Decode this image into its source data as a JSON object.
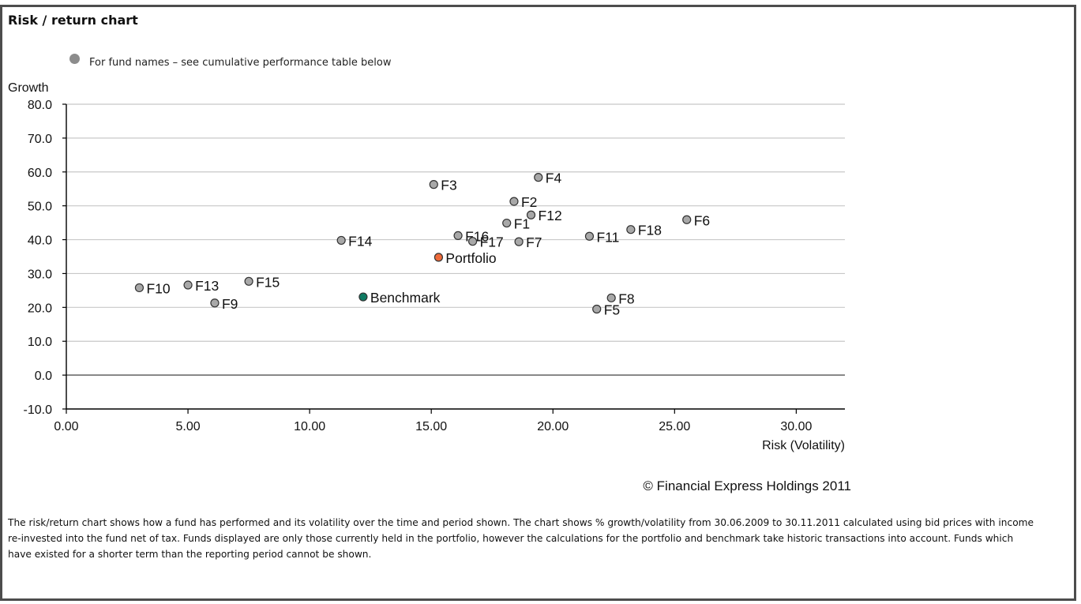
{
  "top_clip": "",
  "title": "Risk / return chart",
  "legend_text": "For fund names – see cumulative performance table below",
  "copyright": "© Financial Express Holdings 2011",
  "footnote": "The risk/return chart shows how a fund has performed and its volatility over the time and period shown. The chart shows % growth/volatility from 30.06.2009 to 30.11.2011 calculated using bid prices with income re-invested into the fund net of tax. Funds displayed are only those currently held in the portfolio, however the calculations for the portfolio and benchmark take historic transactions into account. Funds which have existed for a shorter term than the reporting period cannot be shown.",
  "colors": {
    "fund": "#a8a8a8",
    "portfolio": "#ee6a3a",
    "benchmark": "#0f7a62",
    "grid": "#c8c8c8"
  },
  "chart_data": {
    "type": "scatter",
    "xlabel": "Risk (Volatility)",
    "ylabel": "Growth",
    "xlim": [
      0,
      32
    ],
    "ylim": [
      -10,
      80
    ],
    "x_ticks": [
      "0.00",
      "5.00",
      "10.00",
      "15.00",
      "20.00",
      "25.00",
      "30.00"
    ],
    "y_ticks": [
      "-10.0",
      "0.0",
      "10.0",
      "20.0",
      "30.0",
      "40.0",
      "50.0",
      "60.0",
      "70.0",
      "80.0"
    ],
    "grid": true,
    "points": [
      {
        "label": "F1",
        "x": 18.1,
        "y": 44.9,
        "kind": "fund"
      },
      {
        "label": "F2",
        "x": 18.4,
        "y": 51.3,
        "kind": "fund"
      },
      {
        "label": "F3",
        "x": 15.1,
        "y": 56.3,
        "kind": "fund"
      },
      {
        "label": "F4",
        "x": 19.4,
        "y": 58.4,
        "kind": "fund"
      },
      {
        "label": "F5",
        "x": 21.8,
        "y": 19.5,
        "kind": "fund"
      },
      {
        "label": "F6",
        "x": 25.5,
        "y": 45.9,
        "kind": "fund"
      },
      {
        "label": "F7",
        "x": 18.6,
        "y": 39.4,
        "kind": "fund"
      },
      {
        "label": "F8",
        "x": 22.4,
        "y": 22.8,
        "kind": "fund"
      },
      {
        "label": "F9",
        "x": 6.1,
        "y": 21.3,
        "kind": "fund"
      },
      {
        "label": "F10",
        "x": 3.0,
        "y": 25.8,
        "kind": "fund"
      },
      {
        "label": "F11",
        "x": 21.5,
        "y": 41.0,
        "kind": "fund"
      },
      {
        "label": "F12",
        "x": 19.1,
        "y": 47.3,
        "kind": "fund"
      },
      {
        "label": "F13",
        "x": 5.0,
        "y": 26.6,
        "kind": "fund"
      },
      {
        "label": "F14",
        "x": 11.3,
        "y": 39.8,
        "kind": "fund"
      },
      {
        "label": "F15",
        "x": 7.5,
        "y": 27.7,
        "kind": "fund"
      },
      {
        "label": "F16",
        "x": 16.1,
        "y": 41.2,
        "kind": "fund"
      },
      {
        "label": "F17",
        "x": 16.7,
        "y": 39.5,
        "kind": "fund"
      },
      {
        "label": "F18",
        "x": 23.2,
        "y": 43.0,
        "kind": "fund"
      },
      {
        "label": "Portfolio",
        "x": 15.3,
        "y": 34.8,
        "kind": "portfolio"
      },
      {
        "label": "Benchmark",
        "x": 12.2,
        "y": 23.1,
        "kind": "benchmark"
      }
    ]
  }
}
